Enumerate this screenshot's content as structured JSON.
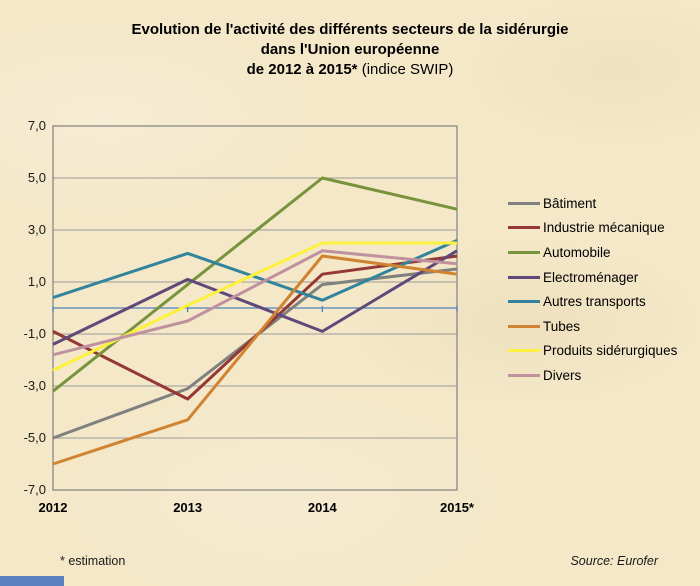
{
  "title": {
    "line1": "Evolution de l'activité des différents secteurs de la sidérurgie",
    "line2": "dans l'Union  européenne",
    "line3_bold": "de 2012 à 2015*",
    "line3_suffix": " (indice SWIP)"
  },
  "footer": {
    "note": "* estimation",
    "source": "Source: Eurofer"
  },
  "colors": {
    "background": "#f4e8c9",
    "grid": "#9a9a9a",
    "plot_border": "#808080",
    "zero_axis": "#4f81bd"
  },
  "chart_data": {
    "type": "line",
    "x": [
      "2012",
      "2013",
      "2014",
      "2015*"
    ],
    "ylim": [
      -7,
      7
    ],
    "y_tick_values": [
      7,
      5,
      3,
      1,
      -1,
      -3,
      -5,
      -7
    ],
    "y_tick_labels": [
      "7,0",
      "5,0",
      "3,0",
      "1,0",
      "-1,0",
      "-3,0",
      "-5,0",
      "-7,0"
    ],
    "grid": true,
    "legend_position": "right",
    "zero_axis": true,
    "series": [
      {
        "name": "Bâtiment",
        "color": "#808080",
        "values": [
          -5.0,
          -3.1,
          0.9,
          1.5
        ]
      },
      {
        "name": "Industrie mécanique",
        "color": "#953735",
        "values": [
          -0.9,
          -3.5,
          1.3,
          2.0
        ]
      },
      {
        "name": "Automobile",
        "color": "#77933c",
        "values": [
          -3.2,
          0.9,
          5.0,
          3.8
        ]
      },
      {
        "name": "Electroménager",
        "color": "#5f497a",
        "values": [
          -1.4,
          1.1,
          -0.9,
          2.2
        ]
      },
      {
        "name": "Autres transports",
        "color": "#31849b",
        "values": [
          0.4,
          2.1,
          0.3,
          2.6
        ]
      },
      {
        "name": "Tubes",
        "color": "#d08330",
        "values": [
          -6.0,
          -4.3,
          2.0,
          1.3
        ]
      },
      {
        "name": "Produits sidérurgiques",
        "color": "#fcf13c",
        "values": [
          -2.4,
          0.1,
          2.5,
          2.5
        ]
      },
      {
        "name": "Divers",
        "color": "#c0919f",
        "values": [
          -1.8,
          -0.5,
          2.2,
          1.7
        ]
      }
    ]
  }
}
